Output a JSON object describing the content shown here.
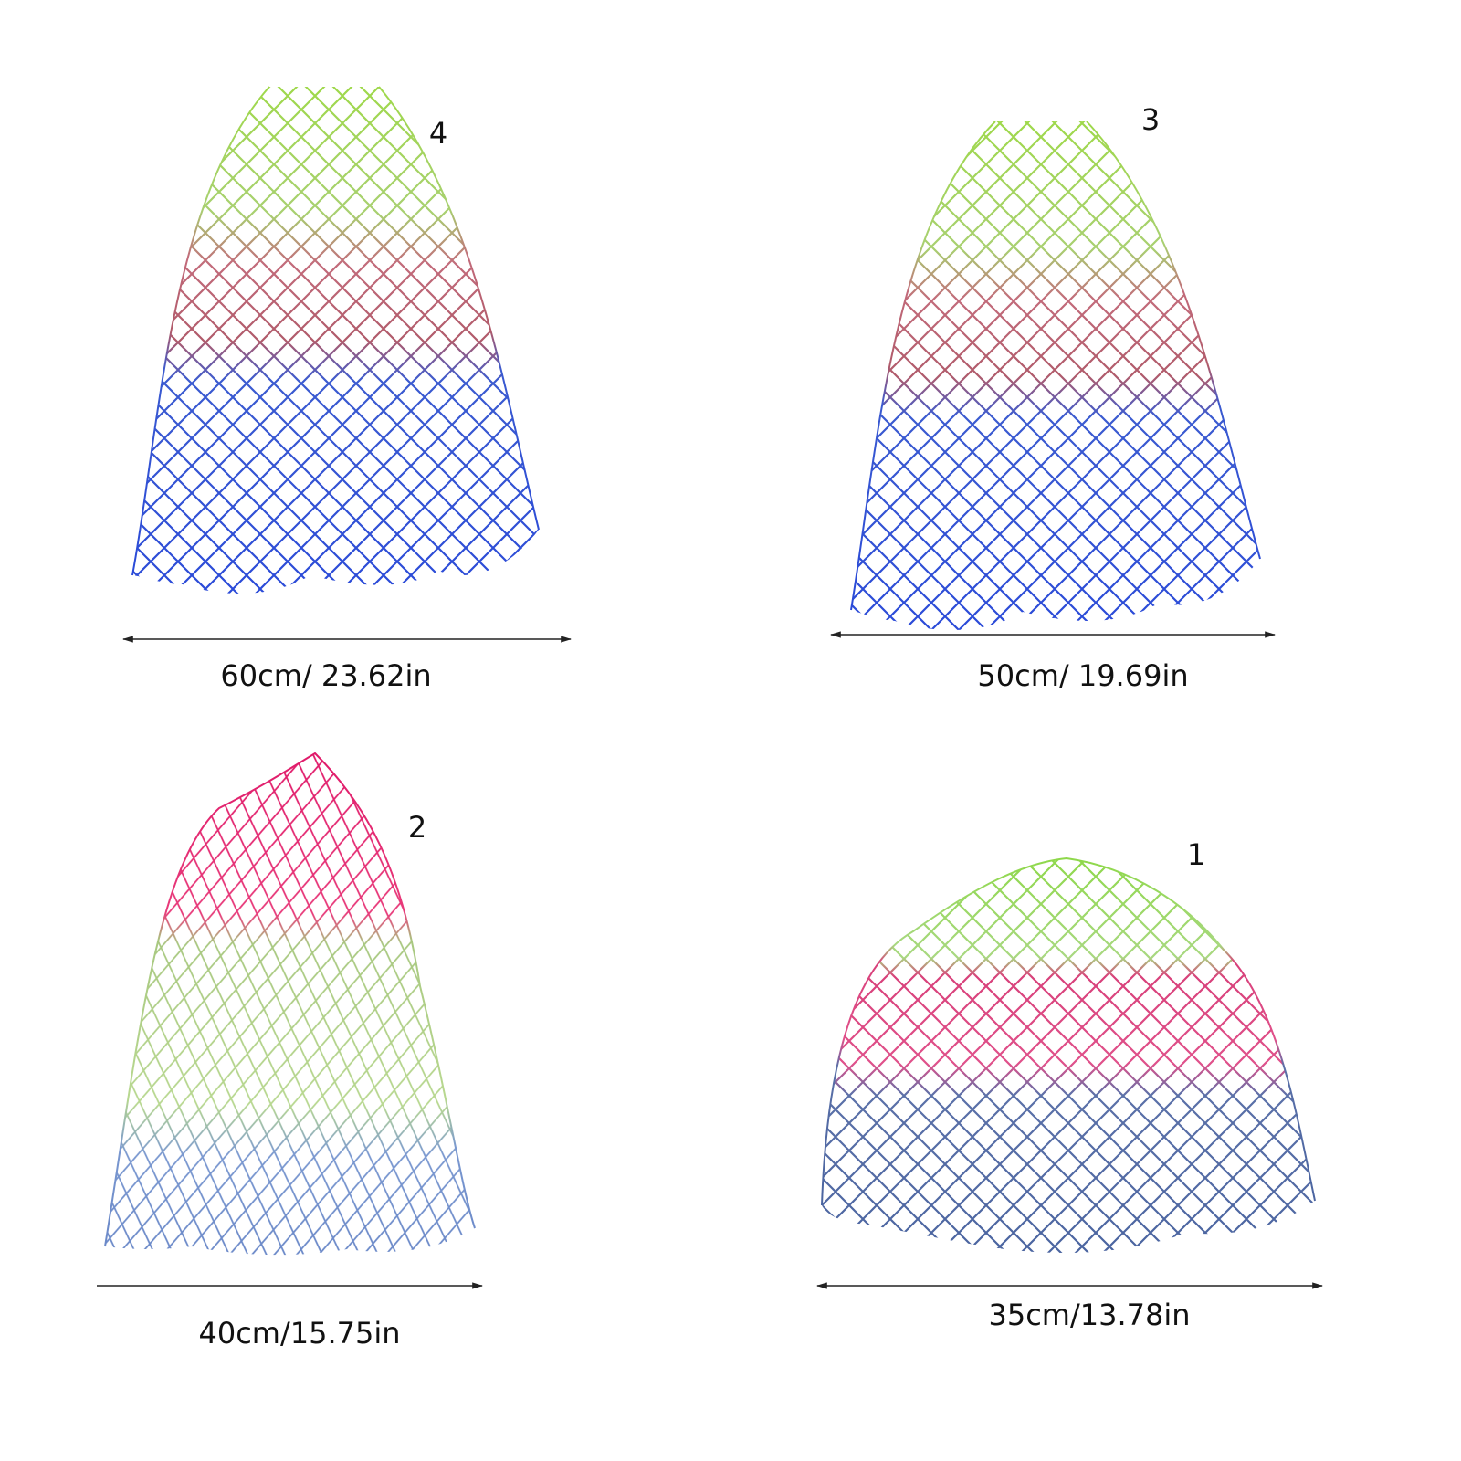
{
  "items": [
    {
      "number": "4",
      "size": "60cm/ 23.62in"
    },
    {
      "number": "3",
      "size": "50cm/ 19.69in"
    },
    {
      "number": "2",
      "size": "40cm/15.75in"
    },
    {
      "number": "1",
      "size": "35cm/13.78in"
    }
  ]
}
